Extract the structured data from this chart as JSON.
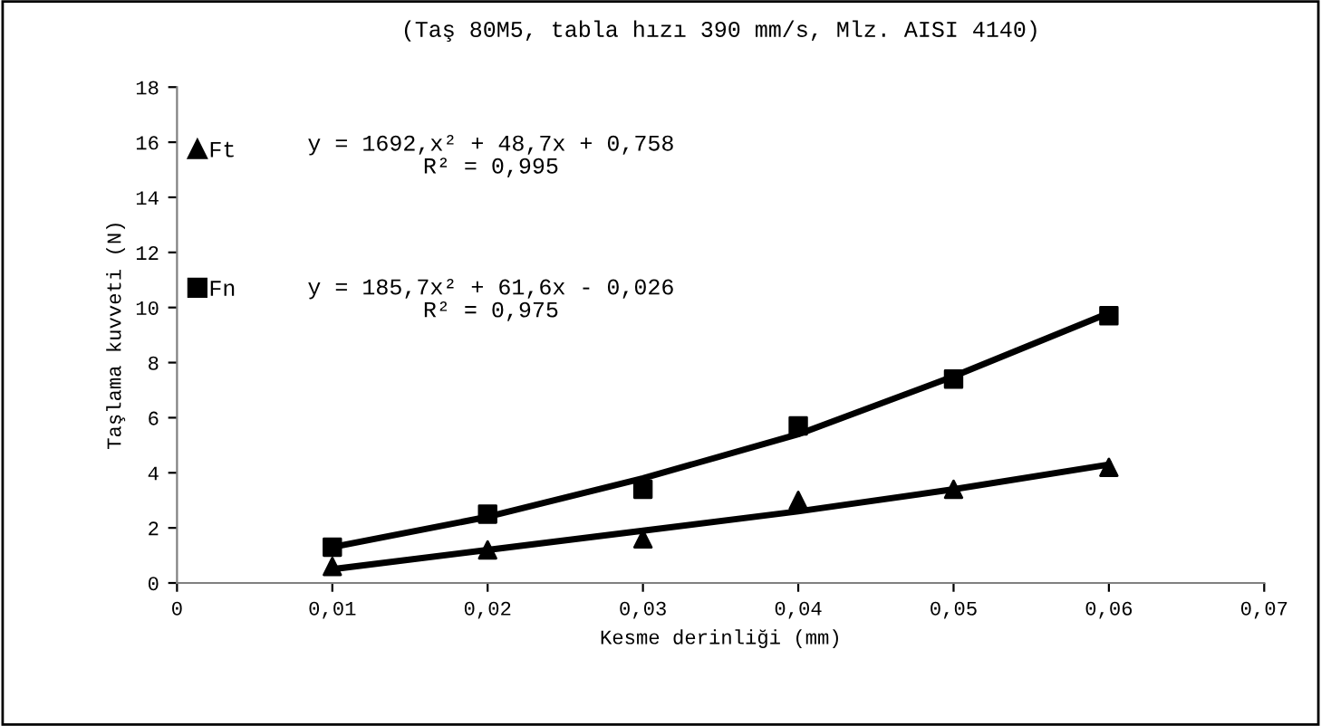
{
  "chart_data": {
    "type": "scatter",
    "title": "(Taş 80M5, tabla hızı 390 mm/s, Mlz. AISI 4140)",
    "xlabel": "Kesme derinliği (mm)",
    "ylabel": "Taşlama kuvveti (N)",
    "x": [
      0.01,
      0.02,
      0.03,
      0.04,
      0.05,
      0.06
    ],
    "series": [
      {
        "name": "Ft",
        "marker": "triangle",
        "color": "#000000",
        "values": [
          0.6,
          1.2,
          1.6,
          3.0,
          3.4,
          4.2
        ]
      },
      {
        "name": "Fn",
        "marker": "square",
        "color": "#000000",
        "values": [
          1.3,
          2.5,
          3.4,
          5.7,
          7.4,
          9.7
        ]
      },
      {
        "type": "line",
        "marker": "none",
        "color": "#000000",
        "x": [
          0.01,
          0.02,
          0.03,
          0.04,
          0.05,
          0.06
        ],
        "values": [
          0.5,
          1.2,
          1.9,
          2.6,
          3.4,
          4.3
        ]
      },
      {
        "type": "line",
        "marker": "none",
        "color": "#000000",
        "x": [
          0.01,
          0.02,
          0.03,
          0.04,
          0.05,
          0.06
        ],
        "values": [
          1.3,
          2.4,
          3.8,
          5.4,
          7.5,
          9.8
        ]
      }
    ],
    "annotations": [
      "y = 1692,x² + 48,7x + 0,758\nR² = 0,995",
      "y = 185,7x² + 61,6x - 0,026\nR² = 0,975"
    ],
    "xlim": [
      0,
      0.07
    ],
    "ylim": [
      0,
      18
    ],
    "xticks": [
      {
        "value": 0,
        "label": "0"
      },
      {
        "value": 0.01,
        "label": "0,01"
      },
      {
        "value": 0.02,
        "label": "0,02"
      },
      {
        "value": 0.03,
        "label": "0,03"
      },
      {
        "value": 0.04,
        "label": "0,04"
      },
      {
        "value": 0.05,
        "label": "0,05"
      },
      {
        "value": 0.06,
        "label": "0,06"
      },
      {
        "value": 0.07,
        "label": "0,07"
      }
    ],
    "yticks": [
      0,
      2,
      4,
      6,
      8,
      10,
      12,
      14,
      16,
      18
    ],
    "legend": "top left",
    "grid": false
  }
}
